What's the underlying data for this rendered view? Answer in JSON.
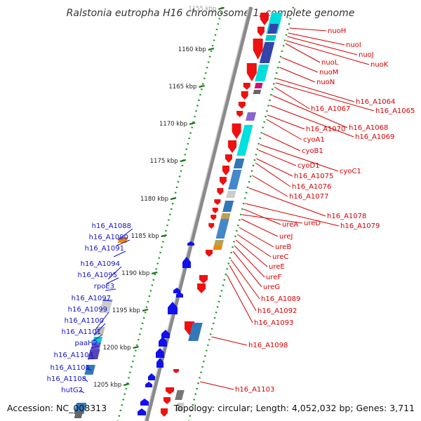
{
  "title": "Ralstonia eutropha H16 chromosome 1, complete genome",
  "accession": "Accession: NC_008313",
  "summary": "Topology: circular; Length: 4,052,032 bp; Genes: 3,711",
  "colors": {
    "backbone": "#888888",
    "forward_cds": "#ee1111",
    "reverse_cds": "#1111ee",
    "tick_dots": "#229922",
    "label_right": "#d40000",
    "label_left": "#1111cc"
  },
  "ticks": [
    {
      "label": "1155 kbp"
    },
    {
      "label": "1160 kbp"
    },
    {
      "label": "1165 kbp"
    },
    {
      "label": "1170 kbp"
    },
    {
      "label": "1175 kbp"
    },
    {
      "label": "1180 kbp"
    },
    {
      "label": "1185 kbp"
    },
    {
      "label": "1190 kbp"
    },
    {
      "label": "1195 kbp"
    },
    {
      "label": "1200 kbp"
    },
    {
      "label": "1205 kbp"
    }
  ],
  "right_labels": [
    "nuoH",
    "nuoI",
    "nuoJ",
    "nuoK",
    "nuoL",
    "nuoM",
    "nuoN",
    "h16_A1064",
    "h16_A1065",
    "h16_A1067",
    "h16_A1068",
    "h16_A1069",
    "h16_A1070",
    "cyoA1",
    "cyoB1",
    "cyoC1",
    "cyoD1",
    "h16_A1075",
    "h16_A1076",
    "h16_A1077",
    "h16_A1078",
    "h16_A1079",
    "ureA",
    "ureD",
    "ureJ",
    "ureB",
    "ureC",
    "ureE",
    "ureF",
    "ureG",
    "h16_A1089",
    "h16_A1092",
    "h16_A1093",
    "h16_A1098",
    "h16_A1103"
  ],
  "left_labels": [
    "h16_A1088",
    "h16_A1090",
    "h16_A1091",
    "h16_A1094",
    "h16_A1095",
    "rpoE3",
    "h16_A1097",
    "h16_A1099",
    "h16_A1100",
    "h16_A1101",
    "paaH2",
    "h16_A1104",
    "h16_A1105",
    "h16_A1108",
    "hutG2"
  ]
}
